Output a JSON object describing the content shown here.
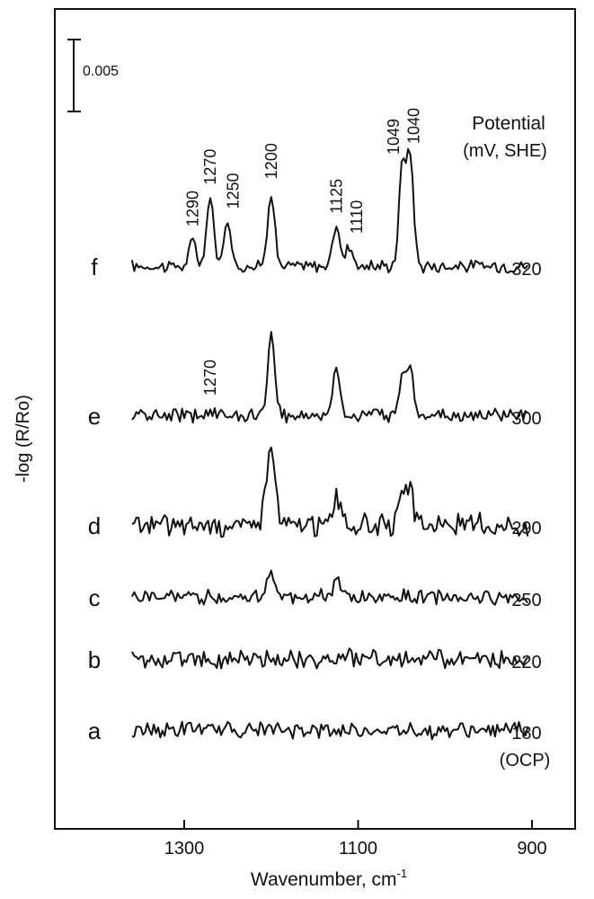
{
  "chart_data": {
    "type": "line",
    "title": "",
    "xlabel": "Wavenumber, cm",
    "xlabel_superscript": "-1",
    "ylabel": "-log (R/Ro)",
    "xlim": [
      1400,
      800
    ],
    "x_reversed": true,
    "x_ticks": [
      1300,
      1100,
      900
    ],
    "x_tick_labels": [
      "1300",
      "1100",
      "900"
    ],
    "scale_bar": {
      "label": "0.005",
      "value": 0.005
    },
    "legend_header": [
      "Potential",
      "(mV, SHE)"
    ],
    "line_color": "#111111",
    "series": [
      {
        "name": "f",
        "potential": "320",
        "peaks": [
          {
            "x": 1290,
            "h": 0.0035
          },
          {
            "x": 1270,
            "h": 0.0098
          },
          {
            "x": 1250,
            "h": 0.0062
          },
          {
            "x": 1200,
            "h": 0.0106
          },
          {
            "x": 1125,
            "h": 0.0058
          },
          {
            "x": 1110,
            "h": 0.003
          },
          {
            "x": 1049,
            "h": 0.014
          },
          {
            "x": 1040,
            "h": 0.015
          }
        ],
        "annotations": [
          "1290",
          "1270",
          "1250",
          "1200",
          "1125",
          "1110",
          "1049",
          "1040"
        ],
        "noise": 0.0007
      },
      {
        "name": "e",
        "potential": "300",
        "peaks": [
          {
            "x": 1270,
            "h": 0.001
          },
          {
            "x": 1200,
            "h": 0.0112
          },
          {
            "x": 1125,
            "h": 0.007
          },
          {
            "x": 1049,
            "h": 0.0055
          },
          {
            "x": 1040,
            "h": 0.0068
          }
        ],
        "annotations": [
          "1270"
        ],
        "noise": 0.0007
      },
      {
        "name": "d",
        "potential": "290",
        "peaks": [
          {
            "x": 1205,
            "h": 0.006
          },
          {
            "x": 1198,
            "h": 0.0085
          },
          {
            "x": 1125,
            "h": 0.0045
          },
          {
            "x": 1049,
            "h": 0.0038
          },
          {
            "x": 1040,
            "h": 0.0045
          }
        ],
        "annotations": [],
        "noise": 0.0012
      },
      {
        "name": "c",
        "potential": "250",
        "peaks": [
          {
            "x": 1200,
            "h": 0.004
          },
          {
            "x": 1125,
            "h": 0.0022
          }
        ],
        "annotations": [],
        "noise": 0.0008
      },
      {
        "name": "b",
        "potential": "220",
        "peaks": [],
        "annotations": [],
        "noise": 0.001
      },
      {
        "name": "a",
        "potential": "180",
        "potential_note": "(OCP)",
        "peaks": [],
        "annotations": [],
        "noise": 0.0009
      }
    ]
  }
}
